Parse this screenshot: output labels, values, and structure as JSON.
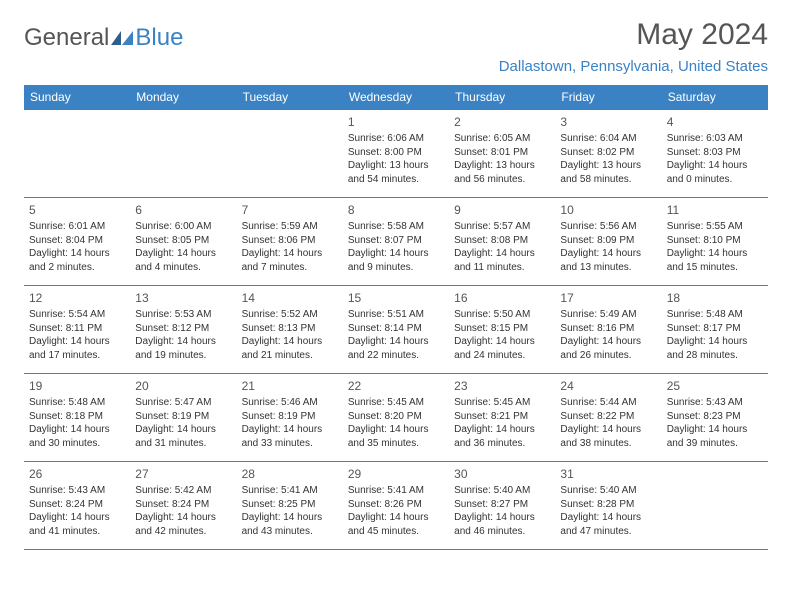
{
  "logo": {
    "text1": "General",
    "text2": "Blue",
    "color_general": "#555555",
    "color_blue": "#3b82c4"
  },
  "title": "May 2024",
  "location": "Dallastown, Pennsylvania, United States",
  "colors": {
    "header_bg": "#3b82c4",
    "border": "#3b82c4",
    "text": "#333333",
    "muted": "#555555"
  },
  "weekdays": [
    "Sunday",
    "Monday",
    "Tuesday",
    "Wednesday",
    "Thursday",
    "Friday",
    "Saturday"
  ],
  "weeks": [
    [
      {
        "n": "",
        "sr": "",
        "ss": "",
        "dl": ""
      },
      {
        "n": "",
        "sr": "",
        "ss": "",
        "dl": ""
      },
      {
        "n": "",
        "sr": "",
        "ss": "",
        "dl": ""
      },
      {
        "n": "1",
        "sr": "6:06 AM",
        "ss": "8:00 PM",
        "dl": "13 hours and 54 minutes."
      },
      {
        "n": "2",
        "sr": "6:05 AM",
        "ss": "8:01 PM",
        "dl": "13 hours and 56 minutes."
      },
      {
        "n": "3",
        "sr": "6:04 AM",
        "ss": "8:02 PM",
        "dl": "13 hours and 58 minutes."
      },
      {
        "n": "4",
        "sr": "6:03 AM",
        "ss": "8:03 PM",
        "dl": "14 hours and 0 minutes."
      }
    ],
    [
      {
        "n": "5",
        "sr": "6:01 AM",
        "ss": "8:04 PM",
        "dl": "14 hours and 2 minutes."
      },
      {
        "n": "6",
        "sr": "6:00 AM",
        "ss": "8:05 PM",
        "dl": "14 hours and 4 minutes."
      },
      {
        "n": "7",
        "sr": "5:59 AM",
        "ss": "8:06 PM",
        "dl": "14 hours and 7 minutes."
      },
      {
        "n": "8",
        "sr": "5:58 AM",
        "ss": "8:07 PM",
        "dl": "14 hours and 9 minutes."
      },
      {
        "n": "9",
        "sr": "5:57 AM",
        "ss": "8:08 PM",
        "dl": "14 hours and 11 minutes."
      },
      {
        "n": "10",
        "sr": "5:56 AM",
        "ss": "8:09 PM",
        "dl": "14 hours and 13 minutes."
      },
      {
        "n": "11",
        "sr": "5:55 AM",
        "ss": "8:10 PM",
        "dl": "14 hours and 15 minutes."
      }
    ],
    [
      {
        "n": "12",
        "sr": "5:54 AM",
        "ss": "8:11 PM",
        "dl": "14 hours and 17 minutes."
      },
      {
        "n": "13",
        "sr": "5:53 AM",
        "ss": "8:12 PM",
        "dl": "14 hours and 19 minutes."
      },
      {
        "n": "14",
        "sr": "5:52 AM",
        "ss": "8:13 PM",
        "dl": "14 hours and 21 minutes."
      },
      {
        "n": "15",
        "sr": "5:51 AM",
        "ss": "8:14 PM",
        "dl": "14 hours and 22 minutes."
      },
      {
        "n": "16",
        "sr": "5:50 AM",
        "ss": "8:15 PM",
        "dl": "14 hours and 24 minutes."
      },
      {
        "n": "17",
        "sr": "5:49 AM",
        "ss": "8:16 PM",
        "dl": "14 hours and 26 minutes."
      },
      {
        "n": "18",
        "sr": "5:48 AM",
        "ss": "8:17 PM",
        "dl": "14 hours and 28 minutes."
      }
    ],
    [
      {
        "n": "19",
        "sr": "5:48 AM",
        "ss": "8:18 PM",
        "dl": "14 hours and 30 minutes."
      },
      {
        "n": "20",
        "sr": "5:47 AM",
        "ss": "8:19 PM",
        "dl": "14 hours and 31 minutes."
      },
      {
        "n": "21",
        "sr": "5:46 AM",
        "ss": "8:19 PM",
        "dl": "14 hours and 33 minutes."
      },
      {
        "n": "22",
        "sr": "5:45 AM",
        "ss": "8:20 PM",
        "dl": "14 hours and 35 minutes."
      },
      {
        "n": "23",
        "sr": "5:45 AM",
        "ss": "8:21 PM",
        "dl": "14 hours and 36 minutes."
      },
      {
        "n": "24",
        "sr": "5:44 AM",
        "ss": "8:22 PM",
        "dl": "14 hours and 38 minutes."
      },
      {
        "n": "25",
        "sr": "5:43 AM",
        "ss": "8:23 PM",
        "dl": "14 hours and 39 minutes."
      }
    ],
    [
      {
        "n": "26",
        "sr": "5:43 AM",
        "ss": "8:24 PM",
        "dl": "14 hours and 41 minutes."
      },
      {
        "n": "27",
        "sr": "5:42 AM",
        "ss": "8:24 PM",
        "dl": "14 hours and 42 minutes."
      },
      {
        "n": "28",
        "sr": "5:41 AM",
        "ss": "8:25 PM",
        "dl": "14 hours and 43 minutes."
      },
      {
        "n": "29",
        "sr": "5:41 AM",
        "ss": "8:26 PM",
        "dl": "14 hours and 45 minutes."
      },
      {
        "n": "30",
        "sr": "5:40 AM",
        "ss": "8:27 PM",
        "dl": "14 hours and 46 minutes."
      },
      {
        "n": "31",
        "sr": "5:40 AM",
        "ss": "8:28 PM",
        "dl": "14 hours and 47 minutes."
      },
      {
        "n": "",
        "sr": "",
        "ss": "",
        "dl": ""
      }
    ]
  ],
  "labels": {
    "sunrise": "Sunrise:",
    "sunset": "Sunset:",
    "daylight": "Daylight:"
  }
}
